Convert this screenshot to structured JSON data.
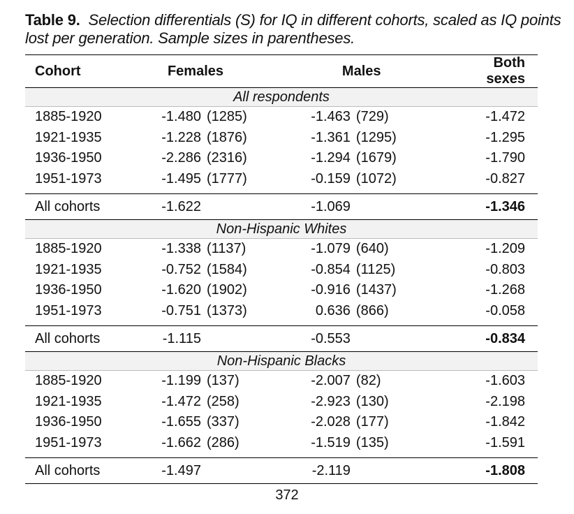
{
  "caption": {
    "label": "Table 9.",
    "text": "Selection differentials (S) for IQ in different cohorts, scaled as IQ points lost per generation. Sample sizes in parentheses."
  },
  "headers": [
    "Cohort",
    "Females",
    "Males",
    "Both sexes"
  ],
  "groups": [
    {
      "title": "All respondents",
      "rows": [
        {
          "cohort": "1885-1920",
          "f": "-1.480",
          "fn": "(1285)",
          "m": "-1.463",
          "mn": "(729)",
          "both": "-1.472"
        },
        {
          "cohort": "1921-1935",
          "f": "-1.228",
          "fn": "(1876)",
          "m": "-1.361",
          "mn": "(1295)",
          "both": "-1.295"
        },
        {
          "cohort": "1936-1950",
          "f": "-2.286",
          "fn": "(2316)",
          "m": "-1.294",
          "mn": "(1679)",
          "both": "-1.790"
        },
        {
          "cohort": "1951-1973",
          "f": "-1.495",
          "fn": "(1777)",
          "m": "-0.159",
          "mn": "(1072)",
          "both": "-0.827"
        }
      ],
      "total": {
        "cohort": "All cohorts",
        "f": "-1.622",
        "m": "-1.069",
        "both": "-1.346"
      }
    },
    {
      "title": "Non-Hispanic Whites",
      "rows": [
        {
          "cohort": "1885-1920",
          "f": "-1.338",
          "fn": "(1137)",
          "m": "-1.079",
          "mn": "(640)",
          "both": "-1.209"
        },
        {
          "cohort": "1921-1935",
          "f": "-0.752",
          "fn": "(1584)",
          "m": "-0.854",
          "mn": "(1125)",
          "both": "-0.803"
        },
        {
          "cohort": "1936-1950",
          "f": "-1.620",
          "fn": "(1902)",
          "m": "-0.916",
          "mn": "(1437)",
          "both": "-1.268"
        },
        {
          "cohort": "1951-1973",
          "f": "-0.751",
          "fn": "(1373)",
          "m": "0.636",
          "mn": "(866)",
          "both": "-0.058"
        }
      ],
      "total": {
        "cohort": "All cohorts",
        "f": "-1.115",
        "m": "-0.553",
        "both": "-0.834"
      }
    },
    {
      "title": "Non-Hispanic Blacks",
      "rows": [
        {
          "cohort": "1885-1920",
          "f": "-1.199",
          "fn": "(137)",
          "m": "-2.007",
          "mn": "(82)",
          "both": "-1.603"
        },
        {
          "cohort": "1921-1935",
          "f": "-1.472",
          "fn": "(258)",
          "m": "-2.923",
          "mn": "(130)",
          "both": "-2.198"
        },
        {
          "cohort": "1936-1950",
          "f": "-1.655",
          "fn": "(337)",
          "m": "-2.028",
          "mn": "(177)",
          "both": "-1.842"
        },
        {
          "cohort": "1951-1973",
          "f": "-1.662",
          "fn": "(286)",
          "m": "-1.519",
          "mn": "(135)",
          "both": "-1.591"
        }
      ],
      "total": {
        "cohort": "All cohorts",
        "f": "-1.497",
        "m": "-2.119",
        "both": "-1.808"
      }
    }
  ],
  "page_number": "372"
}
